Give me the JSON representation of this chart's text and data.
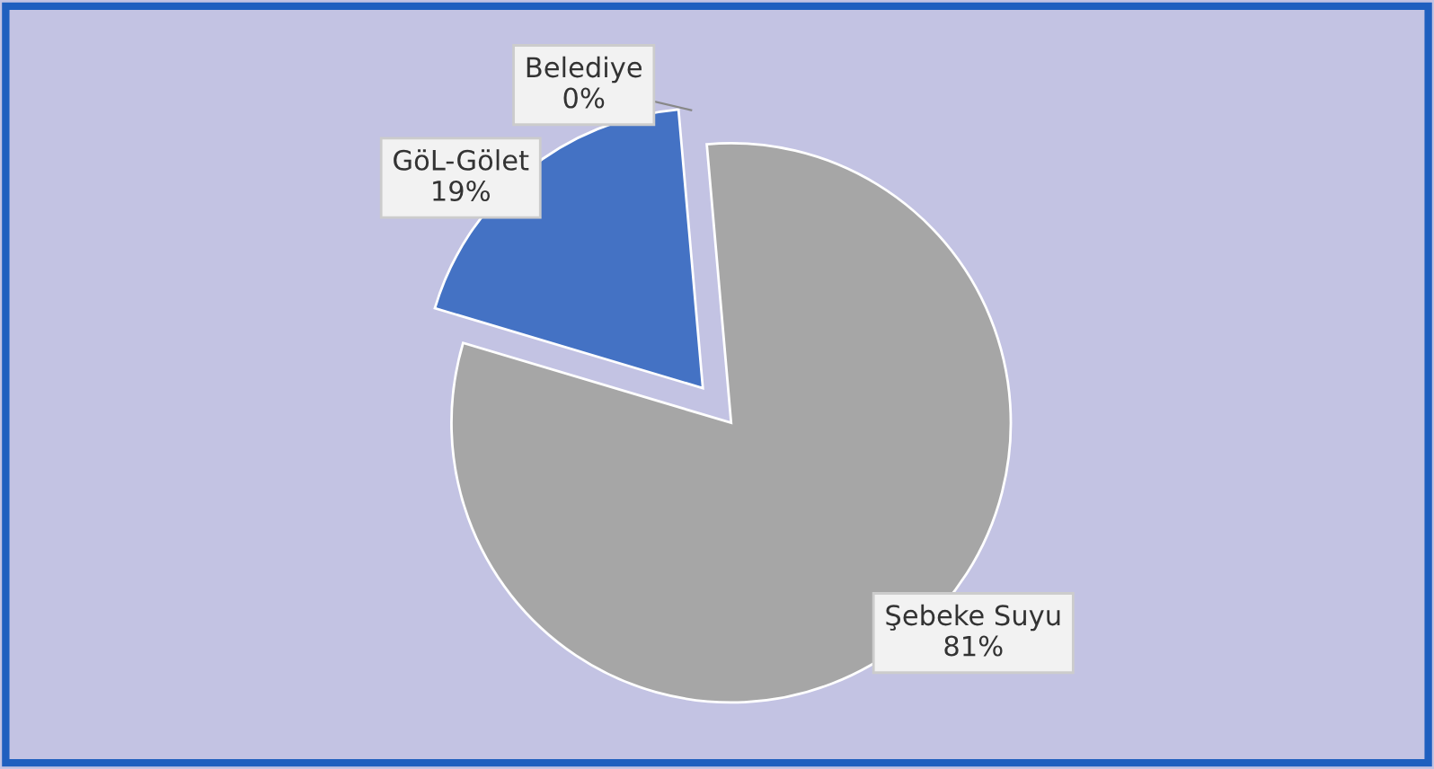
{
  "chart_data": {
    "type": "pie",
    "categories": [
      "Belediye",
      "GöL-Gölet",
      "Şebeke Suyu"
    ],
    "values": [
      0,
      19,
      81
    ],
    "colors": [
      "#c55a11",
      "#4472c4",
      "#a6a6a6"
    ],
    "value_labels": [
      "0%",
      "19%",
      "81%"
    ]
  }
}
